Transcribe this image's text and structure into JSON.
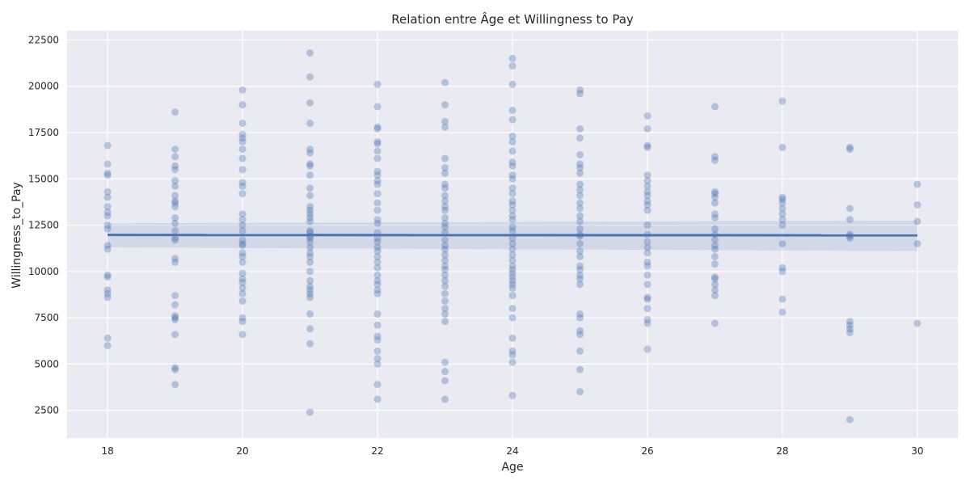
{
  "chart_data": {
    "type": "scatter",
    "title": "Relation entre Âge et Willingness to Pay",
    "xlabel": "Age",
    "ylabel": "Willingness_to_Pay",
    "xlim": [
      17.4,
      30.6
    ],
    "ylim": [
      1000,
      23000
    ],
    "xticks": [
      "18",
      "20",
      "22",
      "24",
      "26",
      "28",
      "30"
    ],
    "yticks": [
      "2500",
      "5000",
      "7500",
      "10000",
      "12500",
      "15000",
      "17500",
      "20000",
      "22500"
    ],
    "grid": true,
    "background": "#eaeaf2",
    "colors": {
      "points": "#4c72b0",
      "regression_line": "#4c72b0",
      "confidence_band": "#4c72b0"
    },
    "points": [
      {
        "x": 18,
        "ys": [
          16800,
          15800,
          15300,
          15200,
          14300,
          14000,
          13500,
          13200,
          13000,
          12500,
          12300,
          11400,
          11200,
          9800,
          9700,
          9000,
          8800,
          8600,
          6400,
          6000
        ]
      },
      {
        "x": 19,
        "ys": [
          18600,
          16600,
          16200,
          15700,
          15500,
          14900,
          14600,
          14100,
          13800,
          13700,
          13500,
          12900,
          12600,
          12200,
          11800,
          11700,
          10700,
          10500,
          8700,
          8200,
          7600,
          7500,
          7400,
          6600,
          4800,
          4700,
          3900
        ]
      },
      {
        "x": 20,
        "ys": [
          19800,
          19000,
          18000,
          17400,
          17200,
          17000,
          16600,
          16100,
          15500,
          14800,
          14600,
          14200,
          13100,
          12800,
          12500,
          12200,
          11700,
          11500,
          11400,
          11000,
          10800,
          10500,
          9900,
          9600,
          9400,
          9100,
          8800,
          8400,
          7500,
          7300,
          6600
        ]
      },
      {
        "x": 21,
        "ys": [
          21800,
          20500,
          19100,
          18000,
          16600,
          16400,
          15800,
          15700,
          15200,
          14500,
          14100,
          13500,
          13300,
          13100,
          12900,
          12700,
          12200,
          12100,
          11900,
          11800,
          11600,
          11300,
          11000,
          10800,
          10500,
          10000,
          9500,
          9200,
          9000,
          8800,
          8600,
          7700,
          6900,
          6100,
          2400
        ]
      },
      {
        "x": 22,
        "ys": [
          20100,
          18900,
          17800,
          17700,
          17000,
          16900,
          16500,
          16100,
          15400,
          15200,
          14900,
          14700,
          14200,
          13700,
          13300,
          12800,
          12600,
          12100,
          11800,
          11600,
          11300,
          11100,
          10800,
          10500,
          10200,
          9800,
          9500,
          9300,
          9000,
          8800,
          7700,
          7100,
          6500,
          6300,
          5700,
          5300,
          5000,
          3900,
          3100
        ]
      },
      {
        "x": 23,
        "ys": [
          20200,
          19000,
          18100,
          17800,
          16100,
          15600,
          15300,
          14700,
          14500,
          14100,
          13800,
          13500,
          13300,
          12900,
          12600,
          12400,
          12100,
          11700,
          11400,
          11200,
          10900,
          10600,
          10300,
          10100,
          9800,
          9500,
          9200,
          8800,
          8400,
          8000,
          7700,
          7300,
          5100,
          4600,
          4100,
          3100
        ]
      },
      {
        "x": 24,
        "ys": [
          21500,
          21100,
          20100,
          18700,
          18200,
          17300,
          17000,
          16500,
          15900,
          15700,
          15200,
          15000,
          14500,
          14200,
          13800,
          13600,
          13300,
          13000,
          12800,
          12400,
          12200,
          11800,
          11500,
          11200,
          10900,
          10600,
          10300,
          10100,
          9900,
          9700,
          9500,
          9300,
          9100,
          8700,
          8000,
          7500,
          6400,
          5700,
          5500,
          5100,
          3300
        ]
      },
      {
        "x": 25,
        "ys": [
          19800,
          19600,
          17700,
          17200,
          16300,
          15800,
          15600,
          15300,
          14700,
          14400,
          14100,
          13700,
          13400,
          13000,
          12700,
          12300,
          12000,
          11900,
          11500,
          11100,
          10800,
          10300,
          10100,
          9800,
          9600,
          9300,
          7700,
          7500,
          6800,
          6600,
          5700,
          4700,
          3500
        ]
      },
      {
        "x": 26,
        "ys": [
          18400,
          17700,
          16800,
          16700,
          15200,
          14900,
          14600,
          14300,
          14100,
          13800,
          13600,
          13300,
          12500,
          12000,
          11600,
          11300,
          11000,
          10500,
          10300,
          9800,
          9300,
          8600,
          8500,
          8000,
          7400,
          7200,
          5800
        ]
      },
      {
        "x": 27,
        "ys": [
          18900,
          16200,
          16000,
          14300,
          14200,
          14000,
          13700,
          13100,
          12900,
          12300,
          12000,
          11700,
          11400,
          11200,
          10800,
          10400,
          9700,
          9600,
          9300,
          9000,
          8700,
          7200
        ]
      },
      {
        "x": 28,
        "ys": [
          19200,
          16700,
          14000,
          13900,
          13700,
          13400,
          13100,
          12800,
          12500,
          11500,
          10200,
          10000,
          8500,
          7800
        ]
      },
      {
        "x": 29,
        "ys": [
          16700,
          16600,
          13400,
          12800,
          12000,
          11900,
          11800,
          7300,
          7100,
          6900,
          6700,
          2000
        ]
      },
      {
        "x": 30,
        "ys": [
          14700,
          13600,
          12700,
          11500,
          7200
        ]
      }
    ],
    "regression": {
      "x": [
        18,
        30
      ],
      "y": [
        11970,
        11950
      ],
      "ci_lower": [
        11300,
        11100
      ],
      "ci_upper": [
        12600,
        12750
      ]
    }
  }
}
